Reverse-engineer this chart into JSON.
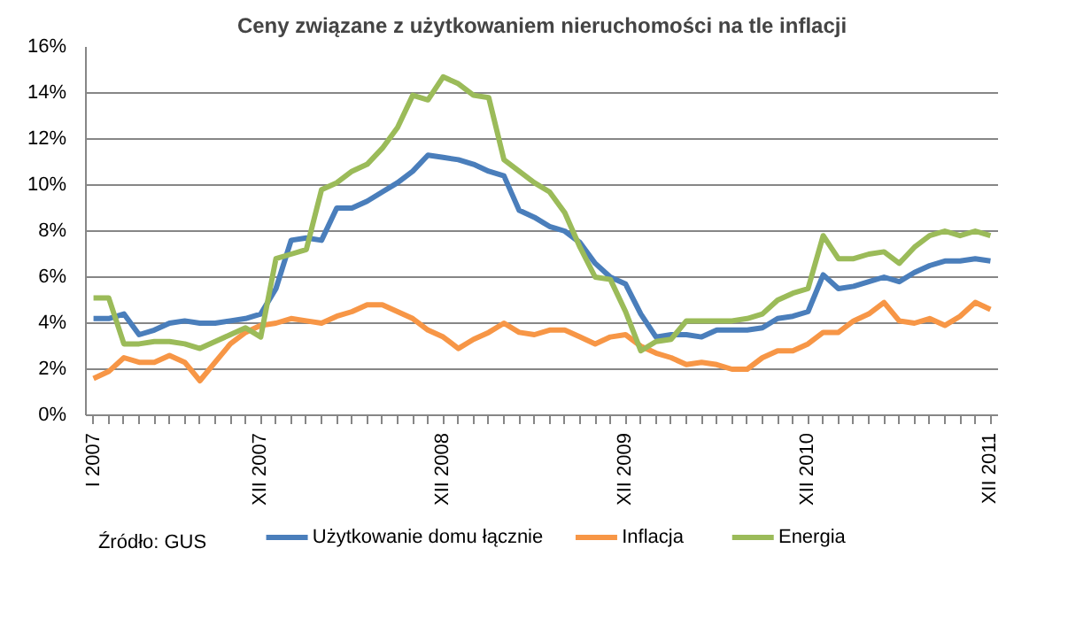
{
  "chart_data": {
    "type": "line",
    "title": "Ceny związane z użytkowaniem nieruchomości na tle inflacji",
    "categories": [
      "I 2007",
      null,
      null,
      null,
      null,
      null,
      null,
      null,
      null,
      null,
      null,
      "XII 2007",
      null,
      null,
      null,
      null,
      null,
      null,
      null,
      null,
      null,
      null,
      null,
      "XII 2008",
      null,
      null,
      null,
      null,
      null,
      null,
      null,
      null,
      null,
      null,
      null,
      "XII 2009",
      null,
      null,
      null,
      null,
      null,
      null,
      null,
      null,
      null,
      null,
      null,
      "XII 2010",
      null,
      null,
      null,
      null,
      null,
      null,
      null,
      null,
      null,
      null,
      null,
      "XII 2011"
    ],
    "series": [
      {
        "name": "Użytkowanie domu łącznie",
        "color": "#4a7ebb",
        "values": [
          4.2,
          4.2,
          4.4,
          3.5,
          3.7,
          4.0,
          4.1,
          4.0,
          4.0,
          4.1,
          4.2,
          4.4,
          5.5,
          7.6,
          7.7,
          7.6,
          9.0,
          9.0,
          9.3,
          9.7,
          10.1,
          10.6,
          11.3,
          11.2,
          11.1,
          10.9,
          10.6,
          10.4,
          8.9,
          8.6,
          8.2,
          8.0,
          7.5,
          6.6,
          6.0,
          5.7,
          4.4,
          3.4,
          3.5,
          3.5,
          3.4,
          3.7,
          3.7,
          3.7,
          3.8,
          4.2,
          4.3,
          4.5,
          6.1,
          5.5,
          5.6,
          5.8,
          6.0,
          5.8,
          6.2,
          6.5,
          6.7,
          6.7,
          6.8,
          6.7
        ]
      },
      {
        "name": "Inflacja",
        "color": "#f79646",
        "values": [
          1.6,
          1.9,
          2.5,
          2.3,
          2.3,
          2.6,
          2.3,
          1.5,
          2.3,
          3.1,
          3.6,
          3.9,
          4.0,
          4.2,
          4.1,
          4.0,
          4.3,
          4.5,
          4.8,
          4.8,
          4.5,
          4.2,
          3.7,
          3.4,
          2.9,
          3.3,
          3.6,
          4.0,
          3.6,
          3.5,
          3.7,
          3.7,
          3.4,
          3.1,
          3.4,
          3.5,
          3.0,
          2.7,
          2.5,
          2.2,
          2.3,
          2.2,
          2.0,
          2.0,
          2.5,
          2.8,
          2.8,
          3.1,
          3.6,
          3.6,
          4.1,
          4.4,
          4.9,
          4.1,
          4.0,
          4.2,
          3.9,
          4.3,
          4.9,
          4.6
        ]
      },
      {
        "name": "Energia",
        "color": "#9bbb59",
        "values": [
          5.1,
          5.1,
          3.1,
          3.1,
          3.2,
          3.2,
          3.1,
          2.9,
          3.2,
          3.5,
          3.8,
          3.4,
          6.8,
          7.0,
          7.2,
          9.8,
          10.1,
          10.6,
          10.9,
          11.6,
          12.5,
          13.9,
          13.7,
          14.7,
          14.4,
          13.9,
          13.8,
          11.1,
          10.6,
          10.1,
          9.7,
          8.8,
          7.3,
          6.0,
          5.9,
          4.5,
          2.8,
          3.2,
          3.3,
          4.1,
          4.1,
          4.1,
          4.1,
          4.2,
          4.4,
          5.0,
          5.3,
          5.5,
          7.8,
          6.8,
          6.8,
          7.0,
          7.1,
          6.6,
          7.3,
          7.8,
          8.0,
          7.8,
          8.0,
          7.8
        ]
      }
    ],
    "ylim": [
      0,
      16
    ],
    "yticks": [
      {
        "value": 0,
        "label": "0%"
      },
      {
        "value": 2,
        "label": "2%"
      },
      {
        "value": 4,
        "label": "4%"
      },
      {
        "value": 6,
        "label": "6%"
      },
      {
        "value": 8,
        "label": "8%"
      },
      {
        "value": 10,
        "label": "10%"
      },
      {
        "value": 12,
        "label": "12%"
      },
      {
        "value": 14,
        "label": "14%"
      },
      {
        "value": 16,
        "label": "16%"
      }
    ],
    "grid": "y",
    "legend": "bottom",
    "marker": "none",
    "line_style": "solid",
    "annotations": [
      "Źródło:  GUS"
    ]
  }
}
